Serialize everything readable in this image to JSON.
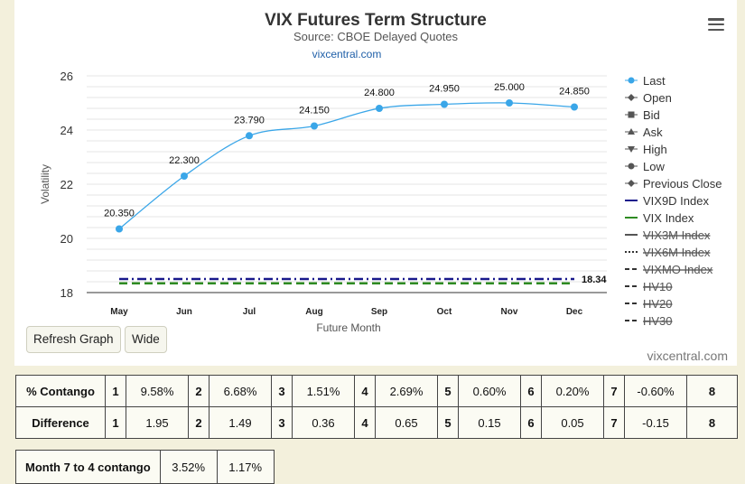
{
  "chart_data": {
    "type": "line",
    "title": "VIX Futures Term Structure",
    "subtitle": "Source: CBOE Delayed Quotes",
    "source_link": "vixcentral.com",
    "xlabel": "Future Month",
    "ylabel": "Volatility",
    "ylim": [
      18,
      26
    ],
    "yticks": [
      18,
      20,
      22,
      24,
      26
    ],
    "categories": [
      "May",
      "Jun",
      "Jul",
      "Aug",
      "Sep",
      "Oct",
      "Nov",
      "Dec"
    ],
    "series": [
      {
        "name": "Last",
        "values": [
          20.35,
          22.3,
          23.79,
          24.15,
          24.8,
          24.95,
          25.0,
          24.85
        ],
        "labels": [
          "20.350",
          "22.300",
          "23.790",
          "24.150",
          "24.800",
          "24.950",
          "25.000",
          "24.850"
        ],
        "color": "#3aa6e8"
      },
      {
        "name": "VIX9D Index",
        "value": 18.5,
        "color": "#1a1a8c",
        "style": "dash-dot"
      },
      {
        "name": "VIX Index",
        "value": 18.34,
        "label": "18.34",
        "color": "#2e8b22",
        "style": "dash"
      }
    ],
    "legend": {
      "placement": "right",
      "items": [
        {
          "label": "Last",
          "marker": "circle",
          "active": true
        },
        {
          "label": "Open",
          "marker": "diamond",
          "active": true
        },
        {
          "label": "Bid",
          "marker": "square",
          "active": true
        },
        {
          "label": "Ask",
          "marker": "triangle",
          "active": true
        },
        {
          "label": "High",
          "marker": "triangle-down",
          "active": true
        },
        {
          "label": "Low",
          "marker": "circle",
          "active": true
        },
        {
          "label": "Previous Close",
          "marker": "diamond",
          "active": true
        },
        {
          "label": "VIX9D Index",
          "marker": "solid-line",
          "active": true
        },
        {
          "label": "VIX Index",
          "marker": "solid-line-green",
          "active": true
        },
        {
          "label": "VIX3M Index",
          "marker": "solid-line-gray",
          "active": false
        },
        {
          "label": "VIX6M Index",
          "marker": "dotted-line",
          "active": false
        },
        {
          "label": "VIXMO Index",
          "marker": "dash-line",
          "active": false
        },
        {
          "label": "HV10",
          "marker": "dash-line",
          "active": false
        },
        {
          "label": "HV20",
          "marker": "dash-line",
          "active": false
        },
        {
          "label": "HV30",
          "marker": "dash-line",
          "active": false
        }
      ]
    }
  },
  "buttons": {
    "refresh_label": "Refresh Graph",
    "wide_label": "Wide"
  },
  "credit": "vixcentral.com",
  "contango_table": {
    "rows": [
      {
        "label": "% Contango",
        "cells": [
          [
            "1",
            "9.58%"
          ],
          [
            "2",
            "6.68%"
          ],
          [
            "3",
            "1.51%"
          ],
          [
            "4",
            "2.69%"
          ],
          [
            "5",
            "0.60%"
          ],
          [
            "6",
            "0.20%"
          ],
          [
            "7",
            "-0.60%"
          ]
        ],
        "last": "8"
      },
      {
        "label": "Difference",
        "cells": [
          [
            "1",
            "1.95"
          ],
          [
            "2",
            "1.49"
          ],
          [
            "3",
            "0.36"
          ],
          [
            "4",
            "0.65"
          ],
          [
            "5",
            "0.15"
          ],
          [
            "6",
            "0.05"
          ],
          [
            "7",
            "-0.15"
          ]
        ],
        "last": "8"
      }
    ]
  },
  "month74": {
    "label": "Month 7 to 4 contango",
    "value1": "3.52%",
    "value2": "1.17%"
  }
}
